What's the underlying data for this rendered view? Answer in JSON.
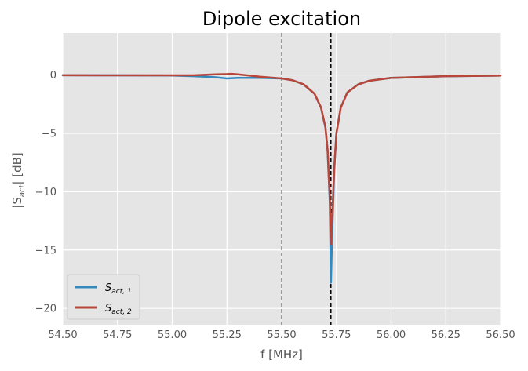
{
  "chart_data": {
    "type": "line",
    "title": "Dipole excitation",
    "xlabel": "f [MHz]",
    "ylabel": {
      "main": "|S",
      "sub": "act",
      "tail": "| [dB]"
    },
    "xlim": [
      54.5,
      56.5
    ],
    "ylim": [
      -21.4,
      3.6
    ],
    "xticks": [
      "54.50",
      "54.75",
      "55.00",
      "55.25",
      "55.50",
      "55.75",
      "56.00",
      "56.25",
      "56.50"
    ],
    "yticks": [
      "0",
      "−5",
      "−10",
      "−15",
      "−20"
    ],
    "xtick_values": [
      54.5,
      54.75,
      55.0,
      55.25,
      55.5,
      55.75,
      56.0,
      56.25,
      56.5
    ],
    "ytick_values": [
      0,
      -5,
      -10,
      -15,
      -20
    ],
    "grid": true,
    "legend_position": "lower-left",
    "vlines": [
      {
        "x": 55.5,
        "style": "dashed",
        "color": "#808080"
      },
      {
        "x": 55.725,
        "style": "dashed",
        "color": "#000000"
      }
    ],
    "series": [
      {
        "name": {
          "main": "S",
          "sub": "act, 1"
        },
        "color": "#348ABD",
        "x": [
          54.5,
          54.75,
          55.0,
          55.1,
          55.2,
          55.25,
          55.3,
          55.4,
          55.5,
          55.55,
          55.6,
          55.65,
          55.68,
          55.7,
          55.71,
          55.72,
          55.725,
          55.73,
          55.74,
          55.75,
          55.77,
          55.8,
          55.85,
          55.9,
          56.0,
          56.25,
          56.5
        ],
        "values": [
          -0.02,
          -0.03,
          -0.05,
          -0.1,
          -0.2,
          -0.3,
          -0.25,
          -0.25,
          -0.3,
          -0.45,
          -0.8,
          -1.6,
          -2.8,
          -4.5,
          -6.5,
          -11.0,
          -17.8,
          -14.0,
          -8.2,
          -5.0,
          -2.8,
          -1.5,
          -0.8,
          -0.5,
          -0.25,
          -0.1,
          -0.05
        ]
      },
      {
        "name": {
          "main": "S",
          "sub": "act, 2"
        },
        "color": "#B9463A",
        "x": [
          54.5,
          54.75,
          55.0,
          55.1,
          55.2,
          55.25,
          55.27,
          55.3,
          55.35,
          55.4,
          55.5,
          55.55,
          55.6,
          55.65,
          55.68,
          55.7,
          55.71,
          55.72,
          55.725,
          55.73,
          55.74,
          55.75,
          55.77,
          55.8,
          55.85,
          55.9,
          56.0,
          56.25,
          56.5
        ],
        "values": [
          -0.02,
          -0.03,
          -0.03,
          -0.02,
          0.05,
          0.08,
          0.1,
          0.05,
          -0.05,
          -0.15,
          -0.3,
          -0.45,
          -0.8,
          -1.6,
          -2.8,
          -4.5,
          -6.5,
          -10.5,
          -14.5,
          -12.5,
          -8.0,
          -5.0,
          -2.8,
          -1.5,
          -0.8,
          -0.5,
          -0.25,
          -0.1,
          -0.05
        ]
      }
    ]
  }
}
